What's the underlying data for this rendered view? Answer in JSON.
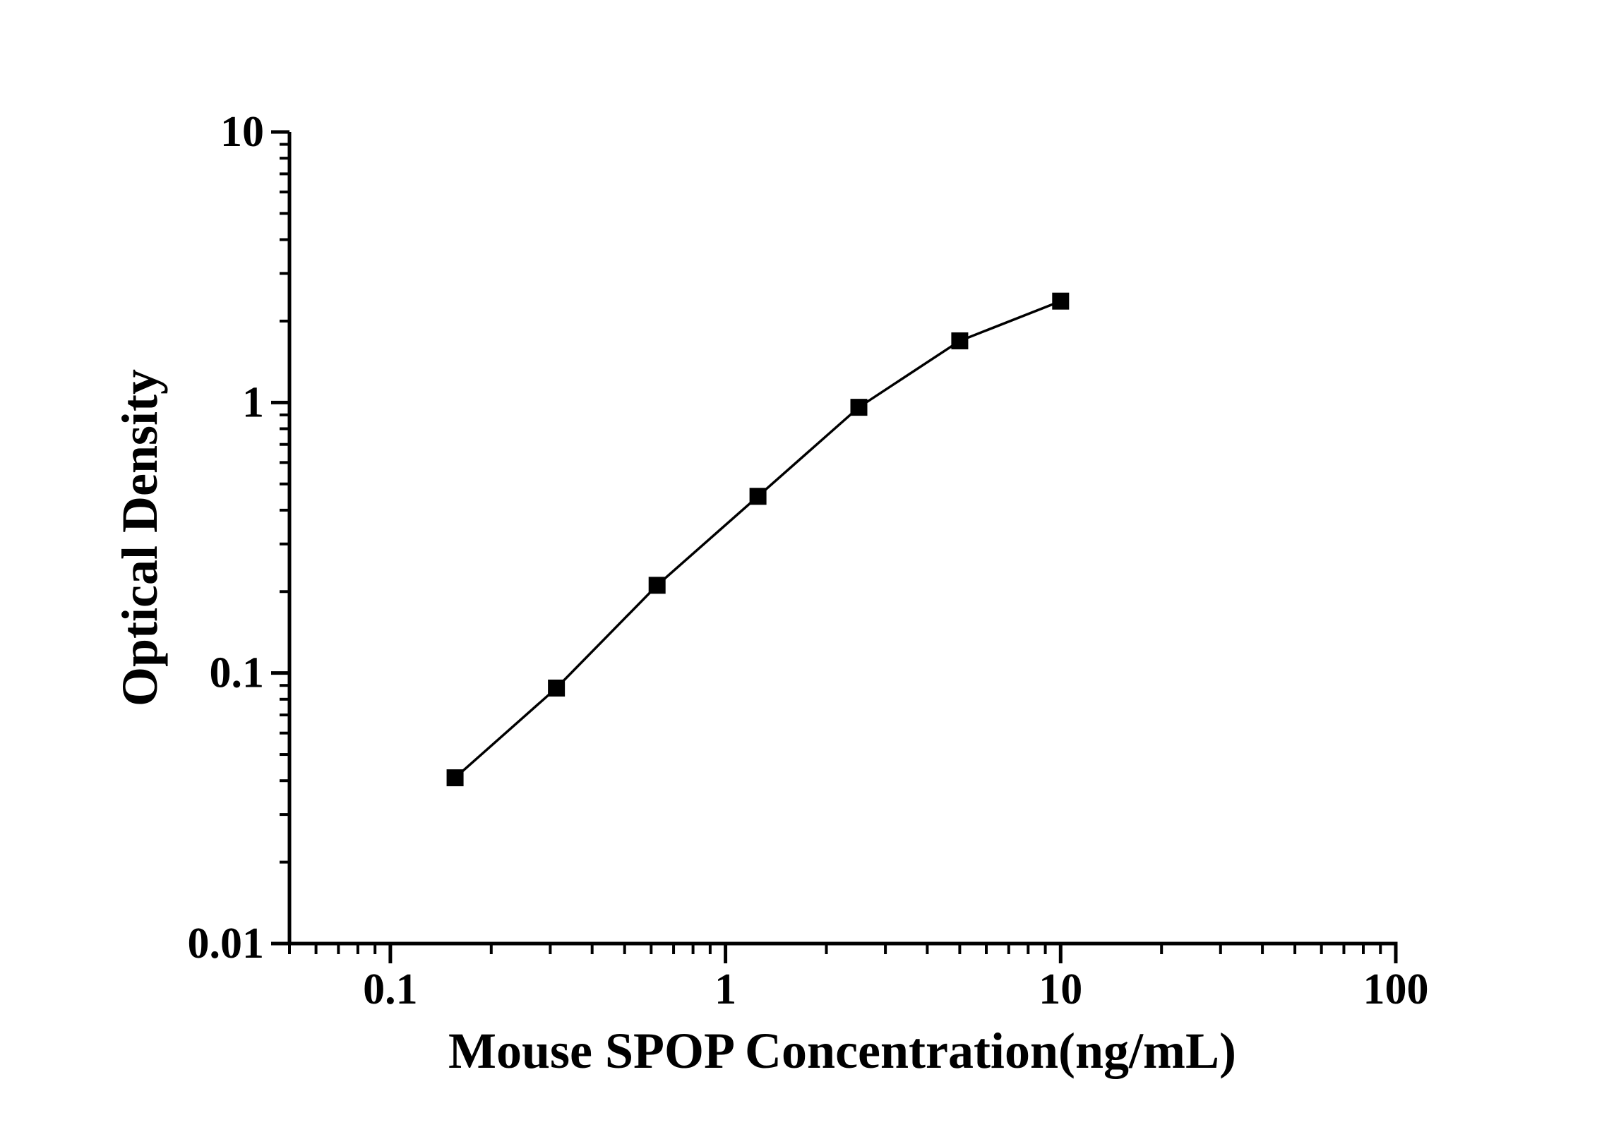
{
  "figure": {
    "background": "#ffffff",
    "foreground": "#000000"
  },
  "chart_data": {
    "type": "line",
    "title": "",
    "xlabel": "Mouse SPOP Concentration(ng/mL)",
    "ylabel": "Optical Density",
    "x_scale": "log",
    "y_scale": "log",
    "xlim": [
      0.05,
      100
    ],
    "ylim": [
      0.01,
      10
    ],
    "x_major_ticks": [
      0.1,
      1,
      10,
      100
    ],
    "x_tick_labels": [
      "0.1",
      "1",
      "10",
      "100"
    ],
    "y_major_ticks": [
      0.01,
      0.1,
      1,
      10
    ],
    "y_tick_labels": [
      "0.01",
      "0.1",
      "1",
      "10"
    ],
    "minor_ticks": "log-decade-2-to-9",
    "grid": false,
    "legend": false,
    "axis_color": "#000000",
    "series": [
      {
        "marker": "filled-square",
        "marker_color": "#000000",
        "line_color": "#000000",
        "x": [
          0.156,
          0.313,
          0.625,
          1.25,
          2.5,
          5,
          10
        ],
        "y": [
          0.041,
          0.088,
          0.211,
          0.45,
          0.96,
          1.69,
          2.37
        ]
      }
    ]
  }
}
